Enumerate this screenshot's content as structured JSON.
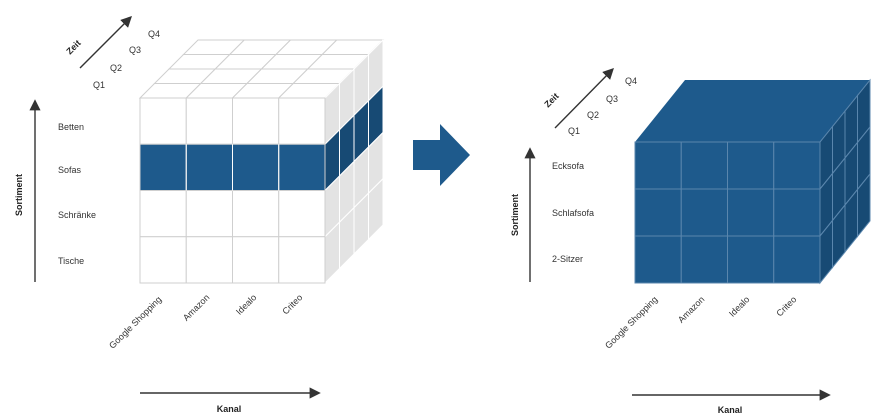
{
  "colors": {
    "accent": "#1e5a8c",
    "accent_dark": "#174a74",
    "grid_light": "#cfcfcf",
    "side_face": "#e3e3e3",
    "axis": "#333333"
  },
  "left_cube": {
    "time_axis_label": "Zeit",
    "quarters": [
      "Q1",
      "Q2",
      "Q3",
      "Q4"
    ],
    "sortiment_axis_label": "Sortiment",
    "sortiment": [
      "Betten",
      "Sofas",
      "Schränke",
      "Tische"
    ],
    "highlight_row": "Sofas",
    "kanal_axis_label": "Kanal",
    "kanal": [
      "Google Shopping",
      "Amazon",
      "Idealo",
      "Criteo"
    ]
  },
  "arrow": {
    "icon": "right-arrow-icon"
  },
  "right_cube": {
    "time_axis_label": "Zeit",
    "quarters": [
      "Q1",
      "Q2",
      "Q3",
      "Q4"
    ],
    "sortiment_axis_label": "Sortiment",
    "sortiment": [
      "Ecksofa",
      "Schlafsofa",
      "2-Sitzer"
    ],
    "kanal_axis_label": "Kanal",
    "kanal": [
      "Google Shopping",
      "Amazon",
      "Idealo",
      "Criteo"
    ]
  }
}
